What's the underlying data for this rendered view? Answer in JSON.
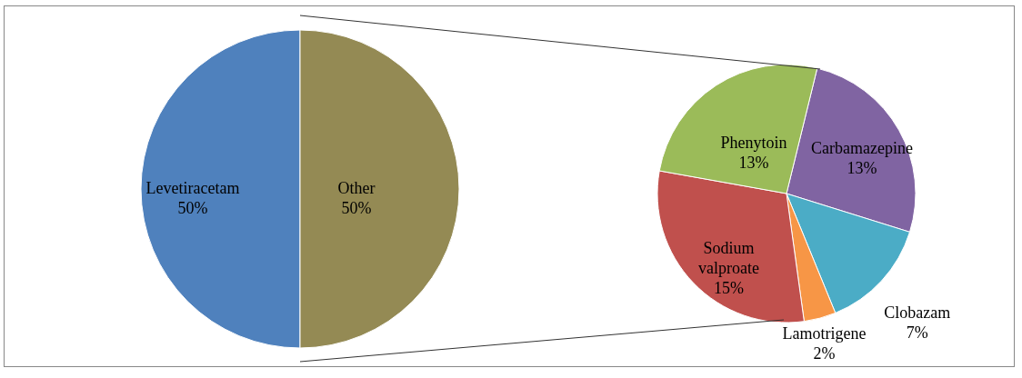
{
  "chart_data": [
    {
      "type": "pie",
      "categories": [
        "Levetiracetam",
        "Other"
      ],
      "values": [
        50,
        50
      ],
      "colors": [
        "#4f81bd",
        "#948a54"
      ],
      "value_labels": [
        "50%",
        "50%"
      ]
    },
    {
      "type": "pie",
      "categories": [
        "Carbamazepine",
        "Clobazam",
        "Lamotrigene",
        "Sodium valproate",
        "Phenytoin"
      ],
      "values": [
        13,
        7,
        2,
        15,
        13
      ],
      "colors": [
        "#8064a2",
        "#4bacc6",
        "#f79646",
        "#c0504d",
        "#9bbb59"
      ],
      "value_labels": [
        "13%",
        "7%",
        "2%",
        "15%",
        "13%"
      ]
    }
  ]
}
